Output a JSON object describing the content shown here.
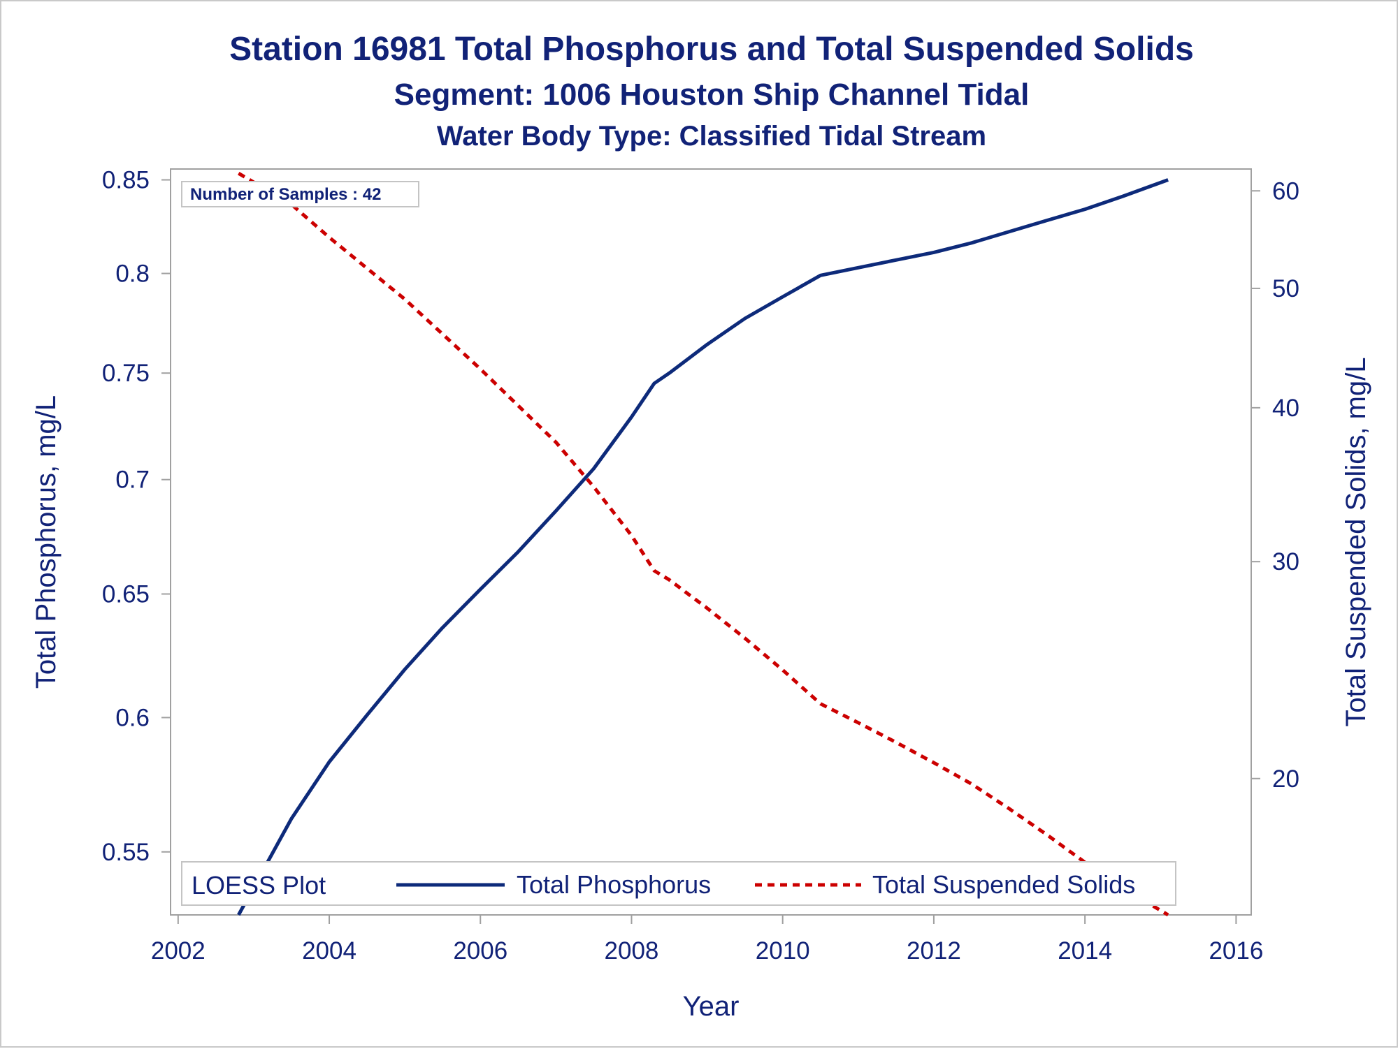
{
  "titles": {
    "line1": "Station 16981  Total Phosphorus and Total Suspended Solids",
    "line2": "Segment: 1006  Houston Ship Channel Tidal",
    "line3": "Water Body Type: Classified Tidal Stream"
  },
  "inset_text": "Number of Samples : 42",
  "legend": {
    "title": "LOESS Plot",
    "items": [
      "Total Phosphorus",
      "Total Suspended Solids"
    ]
  },
  "colors": {
    "text": "#112277",
    "phosphorus": "#0d2a7a",
    "tss": "#cc0000",
    "frame": "#a0a0a0"
  },
  "chart_data": {
    "type": "line",
    "xlabel": "Year",
    "ylabel_left": "Total Phosphorus, mg/L",
    "ylabel_right": "Total Suspended Solids, mg/L",
    "x_ticks": [
      "2002",
      "2004",
      "2006",
      "2008",
      "2010",
      "2012",
      "2014",
      "2016"
    ],
    "y_left_ticks": [
      "0.55",
      "0.6",
      "0.65",
      "0.7",
      "0.75",
      "0.8",
      "0.85"
    ],
    "y_right_ticks": [
      "20",
      "30",
      "40",
      "50",
      "60"
    ],
    "y_left_scale": "log",
    "y_right_scale": "log",
    "xlim": [
      2001.9,
      2016.2
    ],
    "ylim_left": [
      0.528,
      0.856
    ],
    "ylim_right": [
      15.5,
      62.5
    ],
    "legend_position": "bottom",
    "grid": false,
    "series": [
      {
        "name": "Total Phosphorus",
        "axis": "left",
        "style": "solid",
        "x": [
          2002.8,
          2003.5,
          2004.0,
          2004.5,
          2005.0,
          2005.5,
          2006.0,
          2006.5,
          2007.0,
          2007.5,
          2008.0,
          2008.3,
          2008.5,
          2009.0,
          2009.5,
          2010.0,
          2010.5,
          2011.0,
          2011.5,
          2012.0,
          2012.5,
          2013.0,
          2013.5,
          2014.0,
          2014.5,
          2015.1
        ],
        "y": [
          0.528,
          0.562,
          0.583,
          0.601,
          0.619,
          0.636,
          0.652,
          0.668,
          0.686,
          0.705,
          0.729,
          0.745,
          0.75,
          0.764,
          0.777,
          0.788,
          0.799,
          0.803,
          0.807,
          0.811,
          0.816,
          0.822,
          0.828,
          0.834,
          0.841,
          0.85
        ]
      },
      {
        "name": "Total Suspended Solids",
        "axis": "right",
        "style": "dashed",
        "x": [
          2002.8,
          2003.5,
          2004.0,
          2005.0,
          2006.0,
          2007.0,
          2007.5,
          2008.0,
          2008.3,
          2008.5,
          2009.0,
          2009.5,
          2010.0,
          2010.5,
          2011.0,
          2011.5,
          2012.0,
          2012.5,
          2013.0,
          2013.5,
          2014.0,
          2014.5,
          2015.1
        ],
        "y": [
          62,
          58.5,
          55,
          49,
          43,
          37.5,
          34.5,
          31.5,
          29.5,
          29,
          27.5,
          26,
          24.5,
          23,
          22.2,
          21.4,
          20.6,
          19.8,
          18.9,
          18.0,
          17.1,
          16.3,
          15.5
        ]
      }
    ]
  }
}
